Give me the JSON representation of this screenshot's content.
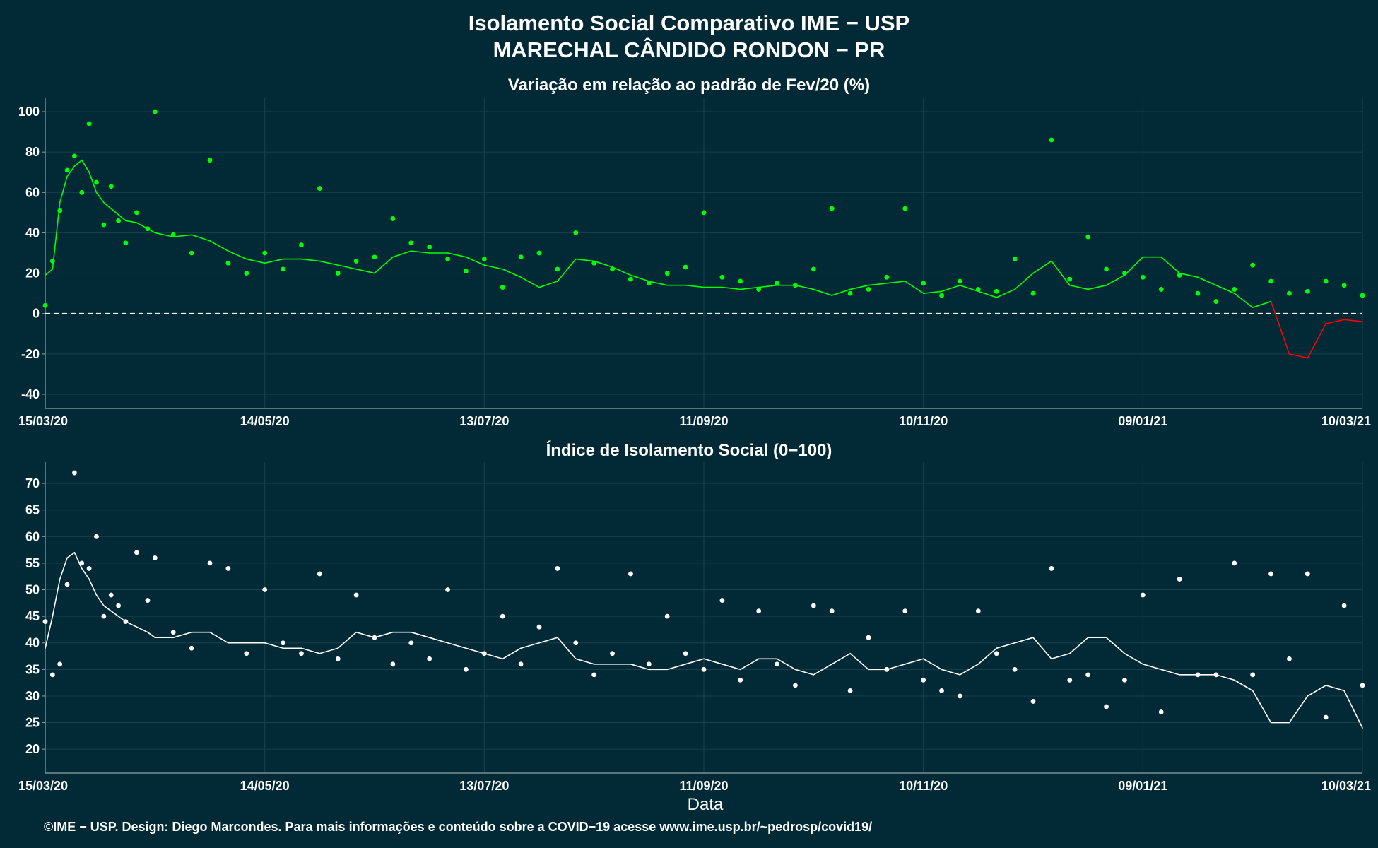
{
  "header": {
    "title": "Isolamento Social Comparativo IME − USP",
    "subtitle": "MARECHAL CÂNDIDO RONDON − PR"
  },
  "footer": {
    "credit": "©IME − USP. Design: Diego Marcondes. Para mais informações e conteúdo sobre a COVID−19 acesse www.ime.usp.br/~pedrosp/covid19/"
  },
  "colors": {
    "background": "#022a36",
    "positive": "#00ff00",
    "negative": "#ff0000",
    "index": "#ffffff",
    "grid": "#16424d",
    "axis": "#8fa3a8"
  },
  "chart_data": [
    {
      "type": "scatter",
      "title": "Variação em relação ao padrão de Fev/20 (%)",
      "xlabel": "",
      "ylabel": "",
      "x_start": "15/03/20",
      "x_tick_labels": [
        "15/03/20",
        "14/05/20",
        "13/07/20",
        "11/09/20",
        "10/11/20",
        "09/01/21",
        "10/03/21"
      ],
      "y_ticks": [
        100,
        80,
        60,
        40,
        20,
        0,
        -20,
        -40
      ],
      "ylim": [
        -47,
        107
      ],
      "reference_line": 0,
      "grid": true,
      "series": [
        {
          "x": [
            0,
            2,
            4,
            6,
            8,
            10,
            12,
            14,
            16,
            18,
            20,
            22,
            25,
            28,
            30,
            35,
            40,
            45,
            50,
            55,
            60,
            65,
            70,
            75,
            80,
            85,
            90,
            95,
            100,
            105,
            110,
            115,
            120,
            125,
            130,
            135,
            140,
            145,
            150,
            155,
            160,
            165,
            170,
            175,
            180,
            185,
            190,
            195,
            200,
            205,
            210,
            215,
            220,
            225,
            230,
            235,
            240,
            245,
            250,
            255,
            260,
            265,
            270,
            275,
            280,
            285,
            290,
            295,
            300,
            305,
            310,
            315,
            320,
            325,
            330,
            335,
            340,
            345,
            350,
            355,
            360
          ],
          "y": [
            4,
            26,
            51,
            71,
            78,
            60,
            94,
            65,
            44,
            63,
            46,
            35,
            50,
            42,
            100,
            39,
            30,
            76,
            25,
            20,
            30,
            22,
            34,
            62,
            20,
            26,
            28,
            47,
            35,
            33,
            27,
            21,
            27,
            13,
            28,
            30,
            22,
            40,
            25,
            22,
            17,
            15,
            20,
            23,
            50,
            18,
            16,
            12,
            15,
            14,
            22,
            52,
            10,
            12,
            18,
            52,
            15,
            9,
            16,
            12,
            11,
            27,
            10,
            86,
            17,
            38,
            22,
            20,
            18,
            12,
            19,
            10,
            6,
            12,
            24,
            16,
            10,
            11,
            16,
            14,
            9
          ],
          "smooth": [
            19,
            22,
            55,
            68,
            73,
            76,
            70,
            60,
            55,
            52,
            49,
            46,
            45,
            42,
            40,
            38,
            39,
            36,
            31,
            27,
            25,
            27,
            27,
            26,
            24,
            22,
            20,
            28,
            31,
            30,
            30,
            28,
            24,
            22,
            18,
            13,
            16,
            27,
            26,
            23,
            19,
            16,
            14,
            14,
            13,
            13,
            12,
            13,
            14,
            14,
            12,
            9,
            12,
            14,
            15,
            16,
            10,
            11,
            14,
            11,
            8,
            12,
            20,
            26,
            14,
            12,
            14,
            19,
            28,
            28,
            20,
            18,
            14,
            10,
            3,
            6,
            -20,
            -22,
            -5,
            -3,
            -4
          ]
        }
      ]
    },
    {
      "type": "scatter",
      "title": "Índice de Isolamento Social (0−100)",
      "xlabel": "Data",
      "ylabel": "",
      "x_start": "15/03/20",
      "x_tick_labels": [
        "15/03/20",
        "14/05/20",
        "13/07/20",
        "11/09/20",
        "10/11/20",
        "09/01/21",
        "10/03/21"
      ],
      "y_ticks": [
        70,
        65,
        60,
        55,
        50,
        45,
        40,
        35,
        30,
        25,
        20
      ],
      "ylim": [
        15.5,
        74
      ],
      "grid": true,
      "series": [
        {
          "x": [
            0,
            2,
            4,
            6,
            8,
            10,
            12,
            14,
            16,
            18,
            20,
            22,
            25,
            28,
            30,
            35,
            40,
            45,
            50,
            55,
            60,
            65,
            70,
            75,
            80,
            85,
            90,
            95,
            100,
            105,
            110,
            115,
            120,
            125,
            130,
            135,
            140,
            145,
            150,
            155,
            160,
            165,
            170,
            175,
            180,
            185,
            190,
            195,
            200,
            205,
            210,
            215,
            220,
            225,
            230,
            235,
            240,
            245,
            250,
            255,
            260,
            265,
            270,
            275,
            280,
            285,
            290,
            295,
            300,
            305,
            310,
            315,
            320,
            325,
            330,
            335,
            340,
            345,
            350,
            355,
            360
          ],
          "y": [
            44,
            34,
            36,
            51,
            72,
            55,
            54,
            60,
            45,
            49,
            47,
            44,
            57,
            48,
            56,
            42,
            39,
            55,
            54,
            38,
            50,
            40,
            38,
            53,
            37,
            49,
            41,
            36,
            40,
            37,
            50,
            35,
            38,
            45,
            36,
            43,
            54,
            40,
            34,
            38,
            53,
            36,
            45,
            38,
            35,
            48,
            33,
            46,
            36,
            32,
            47,
            46,
            31,
            41,
            35,
            46,
            33,
            31,
            30,
            46,
            38,
            35,
            29,
            54,
            33,
            34,
            28,
            33,
            49,
            27,
            52,
            34,
            34,
            55,
            34,
            53,
            37,
            53,
            26,
            47,
            32
          ],
          "smooth": [
            39,
            45,
            52,
            56,
            57,
            54,
            52,
            49,
            47,
            46,
            45,
            44,
            43,
            42,
            41,
            41,
            42,
            42,
            40,
            40,
            40,
            39,
            39,
            38,
            39,
            42,
            41,
            42,
            42,
            41,
            40,
            39,
            38,
            37,
            39,
            40,
            41,
            37,
            36,
            36,
            36,
            35,
            35,
            36,
            37,
            36,
            35,
            37,
            37,
            35,
            34,
            36,
            38,
            35,
            35,
            36,
            37,
            35,
            34,
            36,
            39,
            40,
            41,
            37,
            38,
            41,
            41,
            38,
            36,
            35,
            34,
            34,
            34,
            33,
            31,
            25,
            25,
            30,
            32,
            31,
            24
          ]
        }
      ]
    }
  ]
}
